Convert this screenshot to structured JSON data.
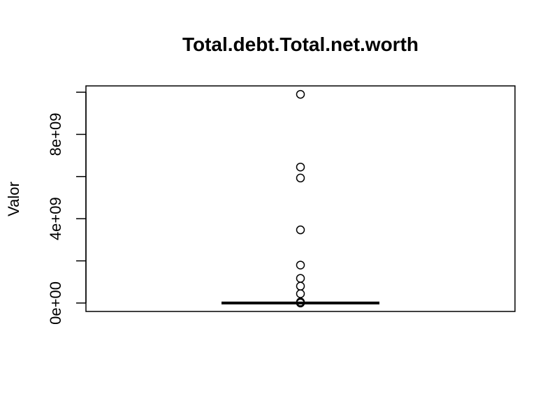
{
  "chart_data": {
    "type": "boxplot",
    "title": "Total.debt.Total.net.worth",
    "xlabel": "",
    "ylabel": "Valor",
    "ylim": [
      -400000000,
      10300000000
    ],
    "yticks": [
      0,
      2000000000,
      4000000000,
      6000000000,
      8000000000,
      10000000000
    ],
    "ytick_labels": [
      "0e+00",
      "",
      "4e+09",
      "",
      "8e+09",
      ""
    ],
    "box": {
      "q1": 0,
      "median": 0,
      "q3": 0,
      "whisker_low": 0,
      "whisker_high": 0
    },
    "outliers": [
      9900000000,
      6450000000,
      5930000000,
      3470000000,
      1800000000,
      1170000000,
      800000000,
      440000000,
      50000000,
      20000000,
      0
    ],
    "grid": false,
    "legend": "none"
  }
}
